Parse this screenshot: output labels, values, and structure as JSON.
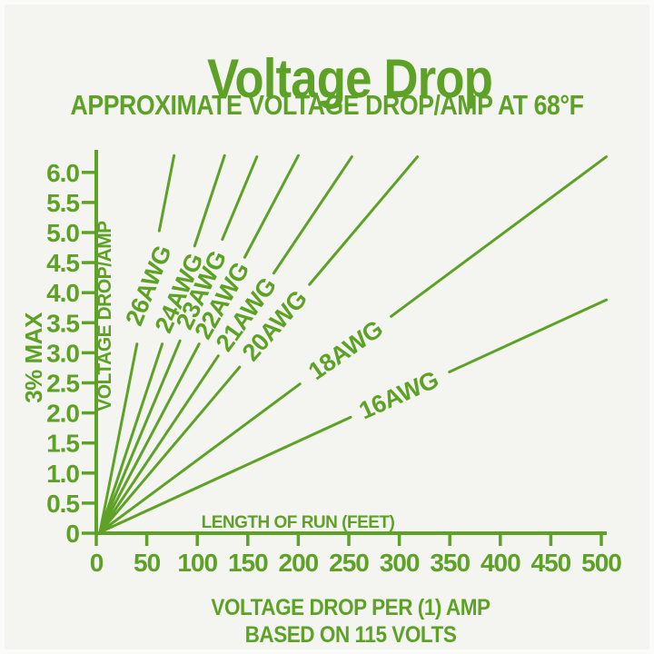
{
  "colors": {
    "accent": "#5da226",
    "background": "#f4f4f1"
  },
  "title": "Voltage Drop",
  "subtitle": "APPROXIMATE VOLTAGE DROP/AMP AT 68°F",
  "footer": {
    "line1": "VOLTAGE DROP PER (1) AMP",
    "line2": "BASED ON 115 VOLTS"
  },
  "chart_data": {
    "type": "line",
    "title": "Voltage Drop",
    "subtitle": "APPROXIMATE VOLTAGE DROP/AMP AT 68°F",
    "xlabel": "LENGTH OF RUN (FEET)",
    "ylabel": "VOLTAGE DROP/AMP",
    "y_secondary_label": "3% MAX",
    "x_unit": "feet",
    "y_unit": "volts dropped per amp",
    "basis": "BASED ON 115 VOLTS",
    "grid": false,
    "legend_position": "labels-on-lines",
    "xlim": [
      0,
      505
    ],
    "ylim": [
      0,
      6.4
    ],
    "x_ticks": [
      0,
      50,
      100,
      150,
      200,
      250,
      300,
      350,
      400,
      450,
      500
    ],
    "y_ticks": [
      0,
      0.5,
      1.0,
      1.5,
      2.0,
      2.5,
      3.0,
      3.5,
      4.0,
      4.5,
      5.0,
      5.5,
      6.0
    ],
    "series": [
      {
        "name": "26AWG",
        "v_drop_per_100ft_per_amp": 8.1,
        "end_ft": 77,
        "end_v": 6.28,
        "gap": [
          0.5,
          0.8
        ],
        "label_t": 0.655,
        "label_angle": -68
      },
      {
        "name": "24AWG",
        "v_drop_per_100ft_per_amp": 4.9,
        "end_ft": 127,
        "end_v": 6.28,
        "gap": [
          0.5,
          0.76
        ],
        "label_t": 0.635,
        "label_angle": -66
      },
      {
        "name": "23AWG",
        "v_drop_per_100ft_per_amp": 3.9,
        "end_ft": 159,
        "end_v": 6.26,
        "gap": [
          0.51,
          0.78
        ],
        "label_t": 0.645,
        "label_angle": -64
      },
      {
        "name": "22AWG",
        "v_drop_per_100ft_per_amp": 3.1,
        "end_ft": 200,
        "end_v": 6.28,
        "gap": [
          0.5,
          0.73
        ],
        "label_t": 0.615,
        "label_angle": -60
      },
      {
        "name": "21AWG",
        "v_drop_per_100ft_per_amp": 2.5,
        "end_ft": 253,
        "end_v": 6.26,
        "gap": [
          0.47,
          0.69
        ],
        "label_t": 0.58,
        "label_angle": -54
      },
      {
        "name": "20AWG",
        "v_drop_per_100ft_per_amp": 2.0,
        "end_ft": 318,
        "end_v": 6.26,
        "gap": [
          0.44,
          0.66
        ],
        "label_t": 0.55,
        "label_angle": -49
      },
      {
        "name": "18AWG",
        "v_drop_per_100ft_per_amp": 1.24,
        "end_ft": 505,
        "end_v": 6.26,
        "gap": [
          0.395,
          0.575
        ],
        "label_t": 0.485,
        "label_angle": -35
      },
      {
        "name": "16AWG",
        "v_drop_per_100ft_per_amp": 0.77,
        "end_ft": 505,
        "end_v": 3.88,
        "gap": [
          0.495,
          0.69
        ],
        "label_t": 0.59,
        "label_angle": -24
      }
    ]
  }
}
